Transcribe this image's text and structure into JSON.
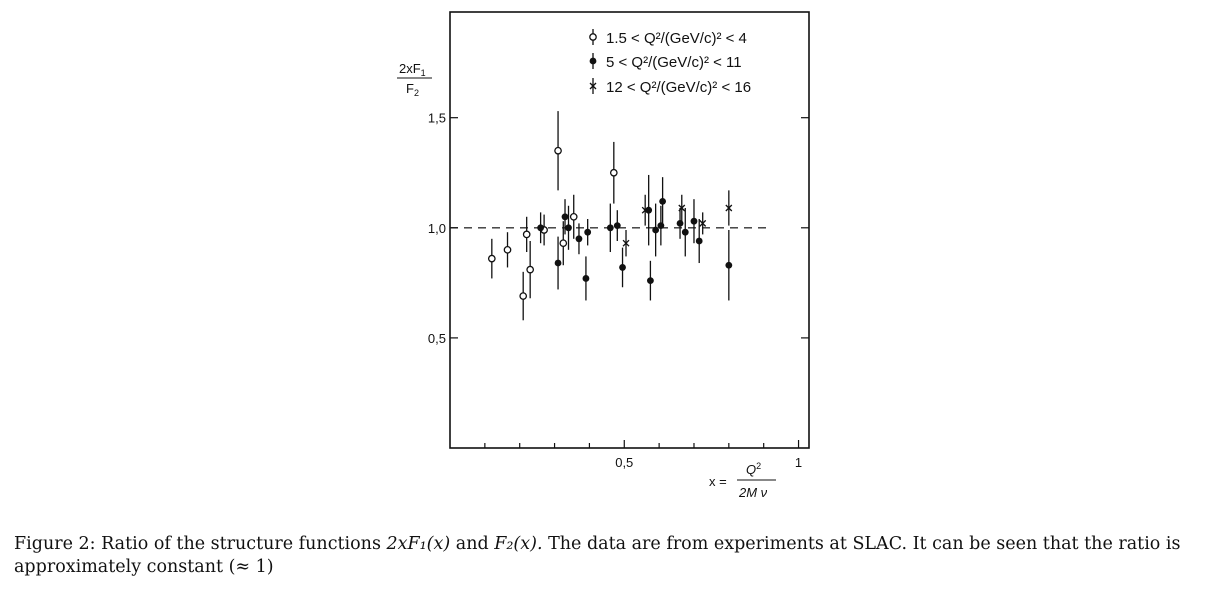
{
  "chart_data": {
    "type": "scatter",
    "title": "",
    "xlabel": {
      "prefix": "x =",
      "numerator": "Q",
      "numerator_sup": "2",
      "denominator": "2M ν"
    },
    "ylabel": {
      "numerator": "2xF",
      "numerator_sub": "1",
      "denominator": "F",
      "denominator_sub": "2"
    },
    "xlim": [
      0,
      1.03
    ],
    "ylim": [
      0,
      1.98
    ],
    "x_ticks": [
      {
        "value": 0.5,
        "label": "0,5"
      },
      {
        "value": 1,
        "label": "1"
      }
    ],
    "y_ticks": [
      {
        "value": 0.5,
        "label": "0,5"
      },
      {
        "value": 1.0,
        "label": "1,0"
      },
      {
        "value": 1.5,
        "label": "1,5"
      }
    ],
    "reference_line": {
      "y": 1.0,
      "style": "dashed"
    },
    "legend": {
      "position": "top-right"
    },
    "series": [
      {
        "name": "1.5 < Q²/(GeV/c)² < 4",
        "marker": "open-circle",
        "points": [
          {
            "x": 0.12,
            "y": 0.86,
            "err": 0.09
          },
          {
            "x": 0.165,
            "y": 0.9,
            "err": 0.08
          },
          {
            "x": 0.21,
            "y": 0.69,
            "err": 0.11
          },
          {
            "x": 0.22,
            "y": 0.97,
            "err": 0.08
          },
          {
            "x": 0.23,
            "y": 0.81,
            "err": 0.13
          },
          {
            "x": 0.27,
            "y": 0.99,
            "err": 0.07
          },
          {
            "x": 0.31,
            "y": 1.35,
            "err": 0.18
          },
          {
            "x": 0.325,
            "y": 0.93,
            "err": 0.1
          },
          {
            "x": 0.355,
            "y": 1.05,
            "err": 0.1
          },
          {
            "x": 0.47,
            "y": 1.25,
            "err": 0.14
          }
        ]
      },
      {
        "name": "5 < Q²/(GeV/c)² < 11",
        "marker": "filled-circle",
        "points": [
          {
            "x": 0.26,
            "y": 1.0,
            "err": 0.07
          },
          {
            "x": 0.31,
            "y": 0.84,
            "err": 0.12
          },
          {
            "x": 0.33,
            "y": 1.05,
            "err": 0.08
          },
          {
            "x": 0.34,
            "y": 1.0,
            "err": 0.1
          },
          {
            "x": 0.37,
            "y": 0.95,
            "err": 0.07
          },
          {
            "x": 0.39,
            "y": 0.77,
            "err": 0.1
          },
          {
            "x": 0.395,
            "y": 0.98,
            "err": 0.06
          },
          {
            "x": 0.46,
            "y": 1.0,
            "err": 0.11
          },
          {
            "x": 0.48,
            "y": 1.01,
            "err": 0.07
          },
          {
            "x": 0.495,
            "y": 0.82,
            "err": 0.09
          },
          {
            "x": 0.57,
            "y": 1.08,
            "err": 0.16
          },
          {
            "x": 0.575,
            "y": 0.76,
            "err": 0.09
          },
          {
            "x": 0.59,
            "y": 0.99,
            "err": 0.12
          },
          {
            "x": 0.605,
            "y": 1.01,
            "err": 0.09
          },
          {
            "x": 0.61,
            "y": 1.12,
            "err": 0.11
          },
          {
            "x": 0.66,
            "y": 1.02,
            "err": 0.07
          },
          {
            "x": 0.675,
            "y": 0.98,
            "err": 0.11
          },
          {
            "x": 0.7,
            "y": 1.03,
            "err": 0.1
          },
          {
            "x": 0.715,
            "y": 0.94,
            "err": 0.1
          },
          {
            "x": 0.8,
            "y": 0.83,
            "err": 0.16
          }
        ]
      },
      {
        "name": "12 < Q²/(GeV/c)² < 16",
        "marker": "cross",
        "points": [
          {
            "x": 0.505,
            "y": 0.93,
            "err": 0.06
          },
          {
            "x": 0.56,
            "y": 1.08,
            "err": 0.07
          },
          {
            "x": 0.665,
            "y": 1.09,
            "err": 0.06
          },
          {
            "x": 0.725,
            "y": 1.02,
            "err": 0.05
          },
          {
            "x": 0.8,
            "y": 1.09,
            "err": 0.08
          }
        ]
      }
    ]
  },
  "legend_labels": [
    "1.5 < Q²/(GeV/c)² < 4",
    "5 < Q²/(GeV/c)² < 11",
    "12 < Q²/(GeV/c)² < 16"
  ],
  "caption": {
    "label": "Figure 2:",
    "text_before": "Ratio of the structure functions",
    "math1": "2xF₁(x)",
    "text_and": "and",
    "math2": "F₂(x).",
    "text_after": "The data are from experiments at SLAC. It can be seen that the ratio is approximately constant (≈ 1)"
  },
  "colors": {
    "ink": "#111111",
    "dash": "#333333"
  }
}
